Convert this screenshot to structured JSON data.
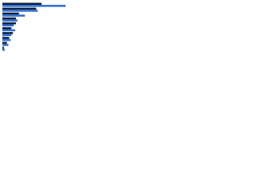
{
  "chart_data": {
    "type": "hbar",
    "categories": [
      null,
      null,
      null,
      null,
      null,
      null,
      null,
      null,
      null,
      null
    ],
    "series": [
      {
        "color": "#0f1f3d",
        "values": [
          52,
          45,
          22,
          18,
          18,
          12,
          14,
          9,
          6,
          2
        ]
      },
      {
        "color": "#2f6fd0",
        "values": [
          84,
          47,
          30,
          20,
          15,
          17,
          12,
          11,
          8,
          3
        ]
      }
    ],
    "xlim": [
      0,
      100
    ]
  }
}
